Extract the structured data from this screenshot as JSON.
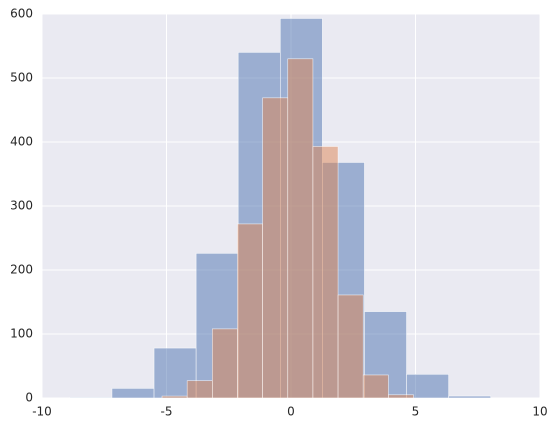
{
  "chart_data": {
    "type": "histogram",
    "series": [
      {
        "color": "#4c72b0",
        "bins": [
          -8.88,
          -7.19,
          -5.5,
          -3.81,
          -2.12,
          -0.43,
          1.26,
          2.95,
          4.64,
          6.33,
          8.02
        ],
        "values": [
          1,
          15,
          78,
          226,
          540,
          593,
          368,
          135,
          37,
          3
        ]
      },
      {
        "color": "#dd8452",
        "bins": [
          -5.18,
          -4.17,
          -3.16,
          -2.15,
          -1.14,
          -0.13,
          0.88,
          1.89,
          2.9,
          3.91,
          4.92
        ],
        "values": [
          3,
          27,
          108,
          272,
          469,
          530,
          393,
          161,
          36,
          5
        ]
      }
    ],
    "alpha": 0.5,
    "xlim": [
      -10,
      10
    ],
    "xticks": [
      -10,
      -5,
      0,
      5,
      10
    ],
    "ylim": [
      0,
      600
    ],
    "yticks": [
      0,
      100,
      200,
      300,
      400,
      500,
      600
    ],
    "grid": true
  }
}
